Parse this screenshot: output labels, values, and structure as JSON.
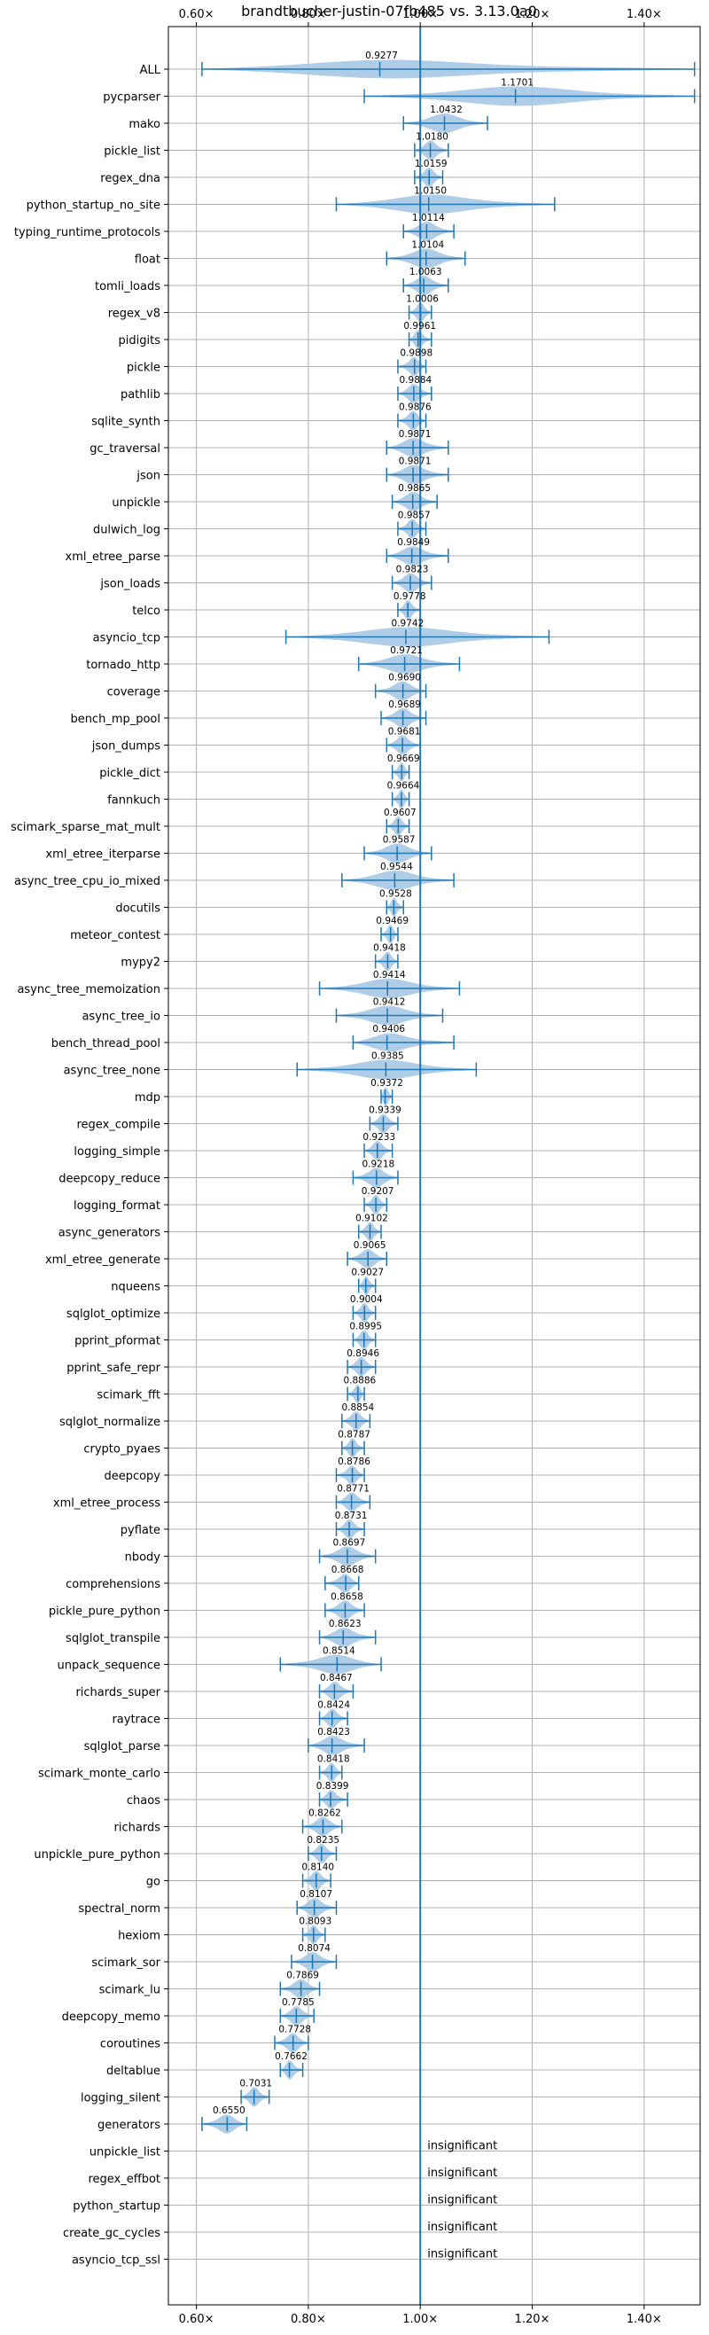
{
  "chart_data": {
    "type": "violin",
    "title": "brandtbucher-justin-07fb485 vs. 3.13.0a0",
    "xlim": [
      0.55,
      1.5
    ],
    "xticks": [
      0.6,
      0.8,
      1.0,
      1.2,
      1.4
    ],
    "xtick_labels": [
      "0.60×",
      "0.80×",
      "1.00×",
      "1.20×",
      "1.40×"
    ],
    "grid": true,
    "reference_line": 1.0,
    "colors": {
      "violin": "#a6c8e4",
      "stroke": "#1f77b4",
      "grid": "#b0b0b0",
      "axis": "#000000"
    },
    "benchmarks": [
      {
        "name": "ALL",
        "median": 0.9277,
        "min": 0.61,
        "max": 1.49
      },
      {
        "name": "pycparser",
        "median": 1.1701,
        "min": 0.9,
        "max": 1.49
      },
      {
        "name": "mako",
        "median": 1.0432,
        "min": 0.97,
        "max": 1.12
      },
      {
        "name": "pickle_list",
        "median": 1.018,
        "min": 0.99,
        "max": 1.05
      },
      {
        "name": "regex_dna",
        "median": 1.0159,
        "min": 0.99,
        "max": 1.04
      },
      {
        "name": "python_startup_no_site",
        "median": 1.015,
        "min": 0.85,
        "max": 1.24
      },
      {
        "name": "typing_runtime_protocols",
        "median": 1.0114,
        "min": 0.97,
        "max": 1.06
      },
      {
        "name": "float",
        "median": 1.0104,
        "min": 0.94,
        "max": 1.08
      },
      {
        "name": "tomli_loads",
        "median": 1.0063,
        "min": 0.97,
        "max": 1.05
      },
      {
        "name": "regex_v8",
        "median": 1.0006,
        "min": 0.98,
        "max": 1.02
      },
      {
        "name": "pidigits",
        "median": 0.9961,
        "min": 0.98,
        "max": 1.02
      },
      {
        "name": "pickle",
        "median": 0.9898,
        "min": 0.96,
        "max": 1.01
      },
      {
        "name": "pathlib",
        "median": 0.9884,
        "min": 0.96,
        "max": 1.02
      },
      {
        "name": "sqlite_synth",
        "median": 0.9876,
        "min": 0.96,
        "max": 1.01
      },
      {
        "name": "gc_traversal",
        "median": 0.9871,
        "min": 0.94,
        "max": 1.05
      },
      {
        "name": "json",
        "median": 0.9871,
        "min": 0.94,
        "max": 1.05
      },
      {
        "name": "unpickle",
        "median": 0.9865,
        "min": 0.95,
        "max": 1.03
      },
      {
        "name": "dulwich_log",
        "median": 0.9857,
        "min": 0.96,
        "max": 1.01
      },
      {
        "name": "xml_etree_parse",
        "median": 0.9849,
        "min": 0.94,
        "max": 1.05
      },
      {
        "name": "json_loads",
        "median": 0.9823,
        "min": 0.95,
        "max": 1.02
      },
      {
        "name": "telco",
        "median": 0.9778,
        "min": 0.96,
        "max": 1.0
      },
      {
        "name": "asyncio_tcp",
        "median": 0.9742,
        "min": 0.76,
        "max": 1.23
      },
      {
        "name": "tornado_http",
        "median": 0.9721,
        "min": 0.89,
        "max": 1.07
      },
      {
        "name": "coverage",
        "median": 0.969,
        "min": 0.92,
        "max": 1.01
      },
      {
        "name": "bench_mp_pool",
        "median": 0.9689,
        "min": 0.93,
        "max": 1.01
      },
      {
        "name": "json_dumps",
        "median": 0.9681,
        "min": 0.94,
        "max": 1.0
      },
      {
        "name": "pickle_dict",
        "median": 0.9669,
        "min": 0.95,
        "max": 0.98
      },
      {
        "name": "fannkuch",
        "median": 0.9664,
        "min": 0.95,
        "max": 0.98
      },
      {
        "name": "scimark_sparse_mat_mult",
        "median": 0.9607,
        "min": 0.94,
        "max": 0.98
      },
      {
        "name": "xml_etree_iterparse",
        "median": 0.9587,
        "min": 0.9,
        "max": 1.02
      },
      {
        "name": "async_tree_cpu_io_mixed",
        "median": 0.9544,
        "min": 0.86,
        "max": 1.06
      },
      {
        "name": "docutils",
        "median": 0.9528,
        "min": 0.94,
        "max": 0.97
      },
      {
        "name": "meteor_contest",
        "median": 0.9469,
        "min": 0.93,
        "max": 0.96
      },
      {
        "name": "mypy2",
        "median": 0.9418,
        "min": 0.92,
        "max": 0.96
      },
      {
        "name": "async_tree_memoization",
        "median": 0.9414,
        "min": 0.82,
        "max": 1.07
      },
      {
        "name": "async_tree_io",
        "median": 0.9412,
        "min": 0.85,
        "max": 1.04
      },
      {
        "name": "bench_thread_pool",
        "median": 0.9406,
        "min": 0.88,
        "max": 1.06
      },
      {
        "name": "async_tree_none",
        "median": 0.9385,
        "min": 0.78,
        "max": 1.1
      },
      {
        "name": "mdp",
        "median": 0.9372,
        "min": 0.93,
        "max": 0.95
      },
      {
        "name": "regex_compile",
        "median": 0.9339,
        "min": 0.91,
        "max": 0.96
      },
      {
        "name": "logging_simple",
        "median": 0.9233,
        "min": 0.9,
        "max": 0.95
      },
      {
        "name": "deepcopy_reduce",
        "median": 0.9218,
        "min": 0.88,
        "max": 0.96
      },
      {
        "name": "logging_format",
        "median": 0.9207,
        "min": 0.9,
        "max": 0.94
      },
      {
        "name": "async_generators",
        "median": 0.9102,
        "min": 0.89,
        "max": 0.93
      },
      {
        "name": "xml_etree_generate",
        "median": 0.9065,
        "min": 0.87,
        "max": 0.94
      },
      {
        "name": "nqueens",
        "median": 0.9027,
        "min": 0.89,
        "max": 0.92
      },
      {
        "name": "sqlglot_optimize",
        "median": 0.9004,
        "min": 0.88,
        "max": 0.92
      },
      {
        "name": "pprint_pformat",
        "median": 0.8995,
        "min": 0.88,
        "max": 0.92
      },
      {
        "name": "pprint_safe_repr",
        "median": 0.8946,
        "min": 0.87,
        "max": 0.92
      },
      {
        "name": "scimark_fft",
        "median": 0.8886,
        "min": 0.87,
        "max": 0.9
      },
      {
        "name": "sqlglot_normalize",
        "median": 0.8854,
        "min": 0.86,
        "max": 0.91
      },
      {
        "name": "crypto_pyaes",
        "median": 0.8787,
        "min": 0.86,
        "max": 0.9
      },
      {
        "name": "deepcopy",
        "median": 0.8786,
        "min": 0.85,
        "max": 0.9
      },
      {
        "name": "xml_etree_process",
        "median": 0.8771,
        "min": 0.85,
        "max": 0.91
      },
      {
        "name": "pyflate",
        "median": 0.8731,
        "min": 0.85,
        "max": 0.9
      },
      {
        "name": "nbody",
        "median": 0.8697,
        "min": 0.82,
        "max": 0.92
      },
      {
        "name": "comprehensions",
        "median": 0.8668,
        "min": 0.83,
        "max": 0.89
      },
      {
        "name": "pickle_pure_python",
        "median": 0.8658,
        "min": 0.83,
        "max": 0.9
      },
      {
        "name": "sqlglot_transpile",
        "median": 0.8623,
        "min": 0.82,
        "max": 0.92
      },
      {
        "name": "unpack_sequence",
        "median": 0.8514,
        "min": 0.75,
        "max": 0.93
      },
      {
        "name": "richards_super",
        "median": 0.8467,
        "min": 0.82,
        "max": 0.88
      },
      {
        "name": "raytrace",
        "median": 0.8424,
        "min": 0.82,
        "max": 0.87
      },
      {
        "name": "sqlglot_parse",
        "median": 0.8423,
        "min": 0.8,
        "max": 0.9
      },
      {
        "name": "scimark_monte_carlo",
        "median": 0.8418,
        "min": 0.82,
        "max": 0.86
      },
      {
        "name": "chaos",
        "median": 0.8399,
        "min": 0.82,
        "max": 0.87
      },
      {
        "name": "richards",
        "median": 0.8262,
        "min": 0.79,
        "max": 0.86
      },
      {
        "name": "unpickle_pure_python",
        "median": 0.8235,
        "min": 0.8,
        "max": 0.85
      },
      {
        "name": "go",
        "median": 0.814,
        "min": 0.79,
        "max": 0.84
      },
      {
        "name": "spectral_norm",
        "median": 0.8107,
        "min": 0.78,
        "max": 0.85
      },
      {
        "name": "hexiom",
        "median": 0.8093,
        "min": 0.79,
        "max": 0.83
      },
      {
        "name": "scimark_sor",
        "median": 0.8074,
        "min": 0.77,
        "max": 0.85
      },
      {
        "name": "scimark_lu",
        "median": 0.7869,
        "min": 0.75,
        "max": 0.82
      },
      {
        "name": "deepcopy_memo",
        "median": 0.7785,
        "min": 0.75,
        "max": 0.81
      },
      {
        "name": "coroutines",
        "median": 0.7728,
        "min": 0.74,
        "max": 0.8
      },
      {
        "name": "deltablue",
        "median": 0.7662,
        "min": 0.75,
        "max": 0.79
      },
      {
        "name": "logging_silent",
        "median": 0.7031,
        "min": 0.68,
        "max": 0.73
      },
      {
        "name": "generators",
        "median": 0.655,
        "min": 0.61,
        "max": 0.69
      },
      {
        "name": "unpickle_list",
        "status": "insignificant"
      },
      {
        "name": "regex_effbot",
        "status": "insignificant"
      },
      {
        "name": "python_startup",
        "status": "insignificant"
      },
      {
        "name": "create_gc_cycles",
        "status": "insignificant"
      },
      {
        "name": "asyncio_tcp_ssl",
        "status": "insignificant"
      }
    ]
  }
}
